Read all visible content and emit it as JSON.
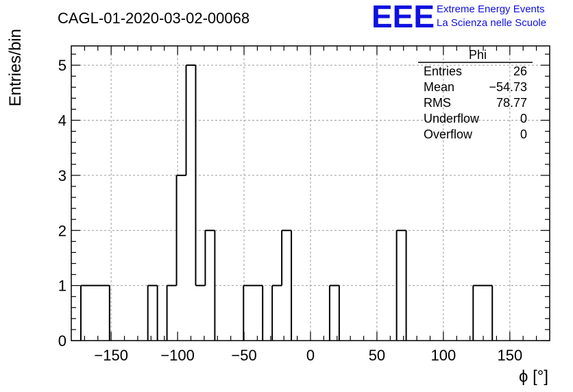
{
  "header": {
    "run_title": "CAGL-01-2020-03-02-00068",
    "logo_text": "EEE",
    "org_line1": "Extreme Energy Events",
    "org_line2": "La Scienza nelle Scuole"
  },
  "stats_box": {
    "title": "Phi",
    "rows": [
      {
        "label": "Entries",
        "value": "26"
      },
      {
        "label": "Mean",
        "value": "−54.73"
      },
      {
        "label": "RMS",
        "value": "78.77"
      },
      {
        "label": "Underflow",
        "value": "0"
      },
      {
        "label": "Overflow",
        "value": "0"
      }
    ]
  },
  "colors": {
    "logo": "#1010e0",
    "org_text": "#1010e0",
    "histogram_line": "#000000",
    "grid": "#9a9a9a"
  },
  "chart_data": {
    "type": "bar",
    "style": "step-histogram",
    "xlabel": "ϕ [°]",
    "ylabel": "Entries/bin",
    "xlim": [
      -180,
      180
    ],
    "ylim": [
      0,
      5.35
    ],
    "bin_width": 7.2,
    "grid": true,
    "x_ticks": [
      -150,
      -100,
      -50,
      0,
      50,
      100,
      150
    ],
    "x_tick_labels": [
      "−150",
      "−100",
      "−50",
      "0",
      "50",
      "100",
      "150"
    ],
    "y_ticks": [
      0,
      1,
      2,
      3,
      4,
      5
    ],
    "y_tick_labels": [
      "0",
      "1",
      "2",
      "3",
      "4",
      "5"
    ],
    "bins": [
      {
        "low": -172.8,
        "high": -165.6,
        "count": 1
      },
      {
        "low": -165.6,
        "high": -158.4,
        "count": 1
      },
      {
        "low": -158.4,
        "high": -151.2,
        "count": 1
      },
      {
        "low": -122.4,
        "high": -115.2,
        "count": 1
      },
      {
        "low": -108.0,
        "high": -100.8,
        "count": 1
      },
      {
        "low": -100.8,
        "high": -93.6,
        "count": 3
      },
      {
        "low": -93.6,
        "high": -86.4,
        "count": 5
      },
      {
        "low": -86.4,
        "high": -79.2,
        "count": 1
      },
      {
        "low": -79.2,
        "high": -72.0,
        "count": 2
      },
      {
        "low": -50.4,
        "high": -43.2,
        "count": 1
      },
      {
        "low": -43.2,
        "high": -36.0,
        "count": 1
      },
      {
        "low": -28.8,
        "high": -21.6,
        "count": 1
      },
      {
        "low": -21.6,
        "high": -14.4,
        "count": 2
      },
      {
        "low": 14.4,
        "high": 21.6,
        "count": 1
      },
      {
        "low": 64.8,
        "high": 72.0,
        "count": 2
      },
      {
        "low": 122.4,
        "high": 129.6,
        "count": 1
      },
      {
        "low": 129.6,
        "high": 136.8,
        "count": 1
      }
    ]
  }
}
